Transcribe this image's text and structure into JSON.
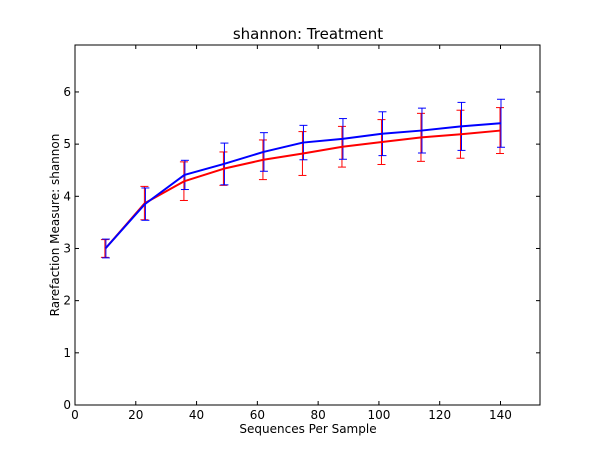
{
  "chart_data": {
    "type": "line",
    "title": "shannon: Treatment",
    "xlabel": "Sequences Per Sample",
    "ylabel": "Rarefaction Measure: shannon",
    "xlim": [
      0,
      153
    ],
    "ylim": [
      0,
      6.9
    ],
    "x_ticks": [
      0,
      20,
      40,
      60,
      80,
      100,
      120,
      140
    ],
    "y_ticks": [
      0,
      1,
      2,
      3,
      4,
      5,
      6
    ],
    "x_tick_labels": [
      "0",
      "20",
      "40",
      "60",
      "80",
      "100",
      "120",
      "140"
    ],
    "y_tick_labels": [
      "0",
      "1",
      "2",
      "3",
      "4",
      "5",
      "6"
    ],
    "grid": false,
    "x": [
      10,
      23,
      36,
      49,
      62,
      75,
      88,
      101,
      114,
      127,
      140
    ],
    "series": [
      {
        "color": "#ff0000",
        "values": [
          3.0,
          3.87,
          4.29,
          4.53,
          4.7,
          4.82,
          4.95,
          5.04,
          5.13,
          5.19,
          5.26
        ],
        "error": [
          0.17,
          0.32,
          0.37,
          0.32,
          0.38,
          0.42,
          0.39,
          0.43,
          0.46,
          0.46,
          0.44
        ]
      },
      {
        "color": "#0000ff",
        "values": [
          3.0,
          3.85,
          4.41,
          4.62,
          4.85,
          5.03,
          5.1,
          5.2,
          5.26,
          5.34,
          5.4
        ],
        "error": [
          0.18,
          0.31,
          0.28,
          0.4,
          0.37,
          0.33,
          0.39,
          0.42,
          0.43,
          0.46,
          0.46
        ]
      }
    ]
  }
}
